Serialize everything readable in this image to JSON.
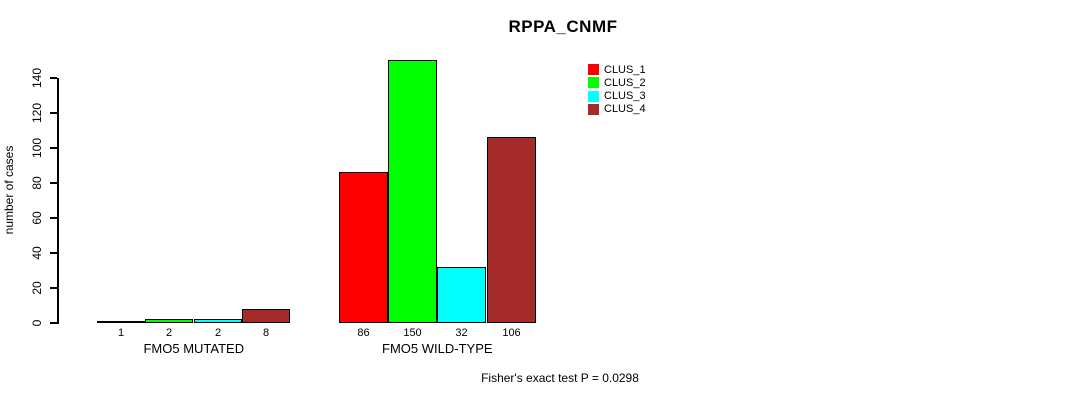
{
  "title": "RPPA_CNMF",
  "footer": "Fisher's exact test P = 0.0298",
  "legend": [
    {
      "label": "CLUS_1",
      "color": "#ff0000"
    },
    {
      "label": "CLUS_2",
      "color": "#00ff00"
    },
    {
      "label": "CLUS_3",
      "color": "#00ffff"
    },
    {
      "label": "CLUS_4",
      "color": "#a52a2a"
    }
  ],
  "chart_data": {
    "type": "bar",
    "title": "RPPA_CNMF",
    "ylabel": "number of cases",
    "xlabel": "",
    "ylim": [
      0,
      140
    ],
    "yticks": [
      0,
      20,
      40,
      60,
      80,
      100,
      120,
      140
    ],
    "grid": false,
    "legend_position": "top-right-inside",
    "categories": [
      "FMO5 MUTATED",
      "FMO5 WILD-TYPE"
    ],
    "series": [
      {
        "name": "CLUS_1",
        "color": "#ff0000",
        "values": [
          1,
          86
        ]
      },
      {
        "name": "CLUS_2",
        "color": "#00ff00",
        "values": [
          2,
          150
        ]
      },
      {
        "name": "CLUS_3",
        "color": "#00ffff",
        "values": [
          2,
          32
        ]
      },
      {
        "name": "CLUS_4",
        "color": "#a52a2a",
        "values": [
          8,
          106
        ]
      }
    ],
    "bar_value_labels": [
      [
        "1",
        "2",
        "2",
        "8"
      ],
      [
        "86",
        "150",
        "32",
        "106"
      ]
    ],
    "annotation": "Fisher's exact test P = 0.0298"
  }
}
